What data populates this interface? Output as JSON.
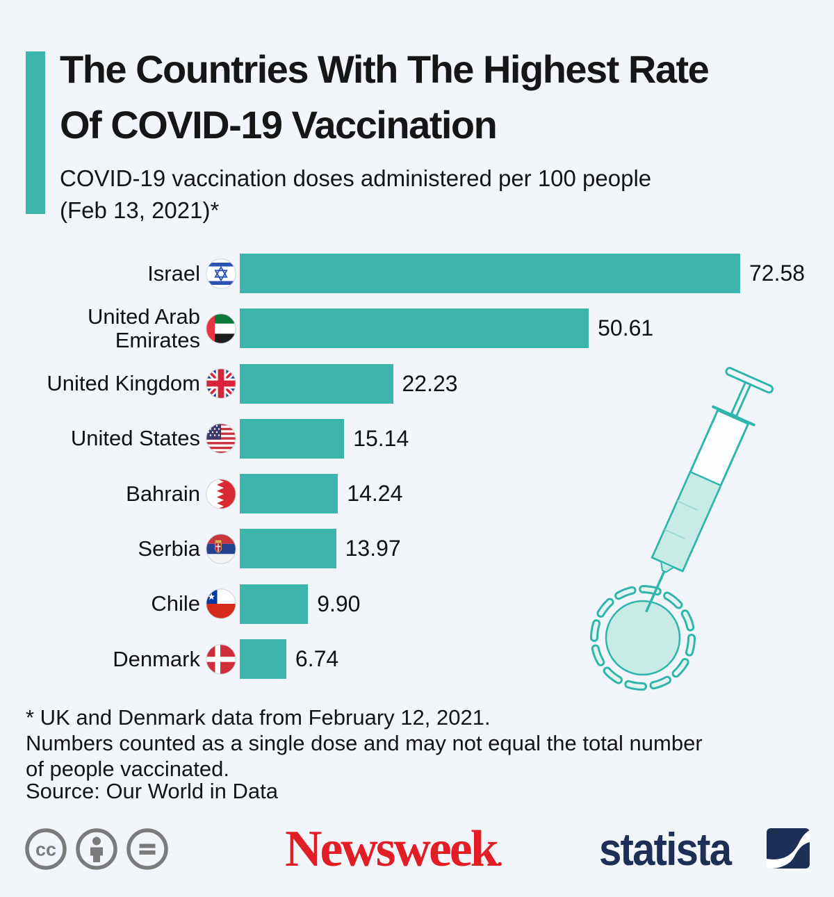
{
  "header": {
    "title_line1": "The Countries With The Highest Rate",
    "title_line2": "Of COVID-19 Vaccination",
    "subtitle_line1": "COVID-19 vaccination doses administered per 100 people",
    "subtitle_line2": "(Feb 13, 2021)*"
  },
  "chart_data": {
    "type": "bar",
    "orientation": "horizontal",
    "title": "The Countries With The Highest Rate Of COVID-19 Vaccination",
    "subtitle": "COVID-19 vaccination doses administered per 100 people (Feb 13, 2021)*",
    "categories": [
      "Israel",
      "United Arab Emirates",
      "United Kingdom",
      "United States",
      "Bahrain",
      "Serbia",
      "Chile",
      "Denmark"
    ],
    "values": [
      72.58,
      50.61,
      22.23,
      15.14,
      14.24,
      13.97,
      9.9,
      6.74
    ],
    "value_labels": [
      "72.58",
      "50.61",
      "22.23",
      "15.14",
      "14.24",
      "13.97",
      "9.90",
      "6.74"
    ],
    "flag_icons": [
      "israel-flag-icon",
      "united-arab-emirates-flag-icon",
      "united-kingdom-flag-icon",
      "united-states-flag-icon",
      "bahrain-flag-icon",
      "serbia-flag-icon",
      "chile-flag-icon",
      "denmark-flag-icon"
    ],
    "bar_color": "#3db4ac",
    "grid": false,
    "legend": false,
    "xlim": [
      0,
      72.58
    ]
  },
  "footnotes": {
    "line1": "* UK and Denmark data from February 12, 2021.",
    "line2": "Numbers counted as a single dose and may not equal the total number",
    "line3": "of people vaccinated.",
    "source": "Source: Our World in Data"
  },
  "footer": {
    "license_icons": [
      "cc-icon",
      "attribution-icon",
      "equals-icon"
    ],
    "newsweek_logo_text": "Newsweek",
    "newsweek_mark": ".",
    "statista_logo_text": "statista"
  },
  "colors": {
    "background": "#f2f6fa",
    "bar_teal": "#3db4ac",
    "accent_teal": "#3db4ac",
    "illustration_teal": "#2fb5ab",
    "illustration_fill": "#c8ebe6",
    "newsweek_red": "#e31d25",
    "statista_navy": "#1b3054",
    "license_gray": "#7b7b7b",
    "text_black": "#141414"
  }
}
